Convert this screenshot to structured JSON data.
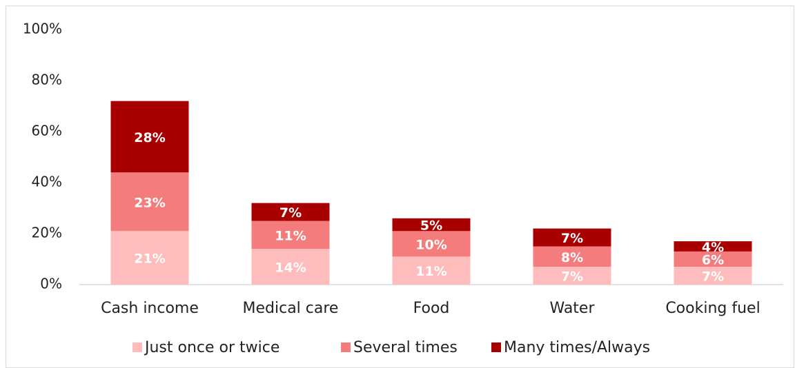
{
  "chart_data": {
    "type": "stacked_bar",
    "categories": [
      "Cash income",
      "Medical care",
      "Food",
      "Water",
      "Cooking fuel"
    ],
    "series": [
      {
        "name": "Just once or twice",
        "color": "#ffbcbc",
        "values": [
          21,
          14,
          11,
          7,
          7
        ],
        "value_labels": [
          "21%",
          "14%",
          "11%",
          "7%",
          "7%"
        ]
      },
      {
        "name": "Several times",
        "color": "#f47c7c",
        "values": [
          23,
          11,
          10,
          8,
          6
        ],
        "value_labels": [
          "23%",
          "11%",
          "10%",
          "8%",
          "6%"
        ]
      },
      {
        "name": "Many times/Always",
        "color": "#a80000",
        "values": [
          28,
          7,
          5,
          7,
          4
        ],
        "value_labels": [
          "28%",
          "7%",
          "5%",
          "7%",
          "4%"
        ]
      }
    ],
    "ylim": [
      0,
      100
    ],
    "yticks": [
      {
        "value": 0,
        "label": "0%"
      },
      {
        "value": 20,
        "label": "20%"
      },
      {
        "value": 40,
        "label": "40%"
      },
      {
        "value": 60,
        "label": "60%"
      },
      {
        "value": 80,
        "label": "80%"
      },
      {
        "value": 100,
        "label": "100%"
      }
    ],
    "grid": false,
    "legend": "bottom"
  }
}
